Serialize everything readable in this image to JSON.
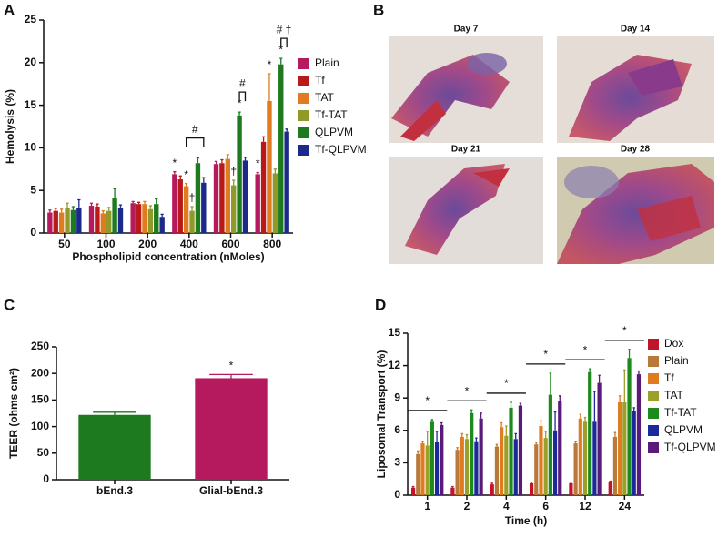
{
  "chart_data": [
    {
      "type": "bar",
      "panel_label": "A",
      "y_label": "Hemolysis (%)",
      "x_label": "Phospholipid concentration (nMoles)",
      "categories": [
        "50",
        "100",
        "200",
        "400",
        "600",
        "800"
      ],
      "series": [
        {
          "name": "Plain",
          "color": "#b5195e",
          "values": [
            2.4,
            3.2,
            3.5,
            6.9,
            8.1,
            6.9
          ],
          "errors": [
            0.3,
            0.3,
            0.2,
            0.3,
            0.3,
            0.2
          ]
        },
        {
          "name": "Tf",
          "color": "#b81a1a",
          "values": [
            2.6,
            3.1,
            3.4,
            6.3,
            8.2,
            10.7
          ],
          "errors": [
            0.3,
            0.3,
            0.2,
            0.4,
            0.4,
            0.6
          ]
        },
        {
          "name": "TAT",
          "color": "#e07b1f",
          "values": [
            2.4,
            2.3,
            3.4,
            5.5,
            8.7,
            15.5
          ],
          "errors": [
            0.4,
            0.3,
            0.3,
            0.3,
            0.5,
            3.2
          ]
        },
        {
          "name": "Tf-TAT",
          "color": "#8f9a2a",
          "values": [
            2.9,
            2.6,
            2.8,
            2.6,
            5.6,
            7.0
          ],
          "errors": [
            0.6,
            0.4,
            0.4,
            0.5,
            0.6,
            0.5
          ]
        },
        {
          "name": "QLPVM",
          "color": "#1e7a1e",
          "values": [
            2.7,
            4.1,
            3.4,
            8.2,
            13.8,
            19.8
          ],
          "errors": [
            0.4,
            1.1,
            0.6,
            0.6,
            0.4,
            0.7
          ]
        },
        {
          "name": "Tf-QLPVM",
          "color": "#1b2a8a",
          "values": [
            3.0,
            3.0,
            1.9,
            5.9,
            8.5,
            11.9
          ],
          "errors": [
            0.9,
            0.3,
            0.3,
            0.6,
            0.4,
            0.3
          ]
        }
      ],
      "ylim": [
        0,
        25
      ],
      "yticks": [
        0,
        5,
        10,
        15,
        20,
        25
      ],
      "annotations": [
        {
          "text": "*",
          "category": "400",
          "series": "Plain"
        },
        {
          "text": "*",
          "category": "400",
          "series": "TAT"
        },
        {
          "text": "†",
          "category": "400",
          "series": "Tf-TAT"
        },
        {
          "text": "†",
          "category": "600",
          "series": "Tf-TAT"
        },
        {
          "text": "*",
          "category": "600",
          "series": "QLPVM"
        },
        {
          "text": "*",
          "category": "800",
          "series": "Plain"
        },
        {
          "text": "*",
          "category": "800",
          "series": "TAT"
        },
        {
          "text": "*",
          "category": "800",
          "series": "QLPVM"
        }
      ],
      "brackets": [
        {
          "text": "#",
          "category": "400",
          "from": "TAT",
          "to": "Tf-QLPVM"
        },
        {
          "text": "#",
          "category": "600",
          "from": "QLPVM",
          "to": "Tf-QLPVM"
        },
        {
          "text": "# †",
          "category": "800",
          "from": "QLPVM",
          "to": "Tf-QLPVM"
        }
      ]
    },
    {
      "type": "bar",
      "panel_label": "C",
      "y_label": "TEER (ohms cm²)",
      "categories": [
        "bEnd.3",
        "Glial-bEnd.3"
      ],
      "values": [
        122,
        191
      ],
      "errors": [
        5,
        7
      ],
      "colors": [
        "#1e7a1e",
        "#b5195e"
      ],
      "ylim": [
        0,
        250
      ],
      "yticks": [
        0,
        50,
        100,
        150,
        200,
        250
      ],
      "annotations": [
        {
          "text": "*",
          "category": "Glial-bEnd.3"
        }
      ]
    },
    {
      "type": "bar",
      "panel_label": "D",
      "y_label": "Liposomal Transport (%)",
      "x_label": "Time (h)",
      "categories": [
        "1",
        "2",
        "4",
        "6",
        "12",
        "24"
      ],
      "series": [
        {
          "name": "Dox",
          "color": "#c0142a",
          "values": [
            0.7,
            0.7,
            1.0,
            1.1,
            1.1,
            1.2
          ],
          "errors": [
            0.1,
            0.1,
            0.1,
            0.1,
            0.1,
            0.1
          ]
        },
        {
          "name": "Plain",
          "color": "#b87a3a",
          "values": [
            3.8,
            4.2,
            4.5,
            4.7,
            4.8,
            5.4
          ],
          "errors": [
            0.3,
            0.2,
            0.2,
            0.2,
            0.2,
            0.4
          ]
        },
        {
          "name": "Tf",
          "color": "#e07b1f",
          "values": [
            4.8,
            5.4,
            6.3,
            6.4,
            7.1,
            8.6
          ],
          "errors": [
            0.2,
            0.3,
            0.4,
            0.5,
            0.4,
            0.6
          ]
        },
        {
          "name": "TAT",
          "color": "#9aa02a",
          "values": [
            4.6,
            5.2,
            5.5,
            5.3,
            6.8,
            8.6
          ],
          "errors": [
            1.3,
            0.4,
            0.9,
            0.6,
            0.4,
            3.0
          ]
        },
        {
          "name": "Tf-TAT",
          "color": "#1e8a1e",
          "values": [
            6.8,
            7.6,
            8.1,
            9.3,
            11.4,
            12.7
          ],
          "errors": [
            0.2,
            0.3,
            0.5,
            2.0,
            0.3,
            0.8
          ]
        },
        {
          "name": "QLPVM",
          "color": "#1b2a9a",
          "values": [
            4.9,
            5.0,
            5.2,
            6.0,
            6.8,
            7.8
          ],
          "errors": [
            1.0,
            0.3,
            0.5,
            1.7,
            2.8,
            0.3
          ]
        },
        {
          "name": "Tf-QLPVM",
          "color": "#5a1a7a",
          "values": [
            6.5,
            7.1,
            8.3,
            8.7,
            10.4,
            11.2
          ],
          "errors": [
            0.2,
            0.5,
            0.2,
            0.5,
            0.7,
            0.3
          ]
        }
      ],
      "ylim": [
        0,
        15
      ],
      "yticks": [
        0,
        3,
        6,
        9,
        12,
        15
      ],
      "brackets": [
        {
          "text": "*",
          "category": "1"
        },
        {
          "text": "*",
          "category": "2"
        },
        {
          "text": "*",
          "category": "4"
        },
        {
          "text": "*",
          "category": "6"
        },
        {
          "text": "*",
          "category": "12"
        },
        {
          "text": "*",
          "category": "24"
        }
      ]
    }
  ],
  "panel_b": {
    "panel_label": "B",
    "images": [
      {
        "caption": "Day 7"
      },
      {
        "caption": "Day 14"
      },
      {
        "caption": "Day 21"
      },
      {
        "caption": "Day 28"
      }
    ]
  }
}
